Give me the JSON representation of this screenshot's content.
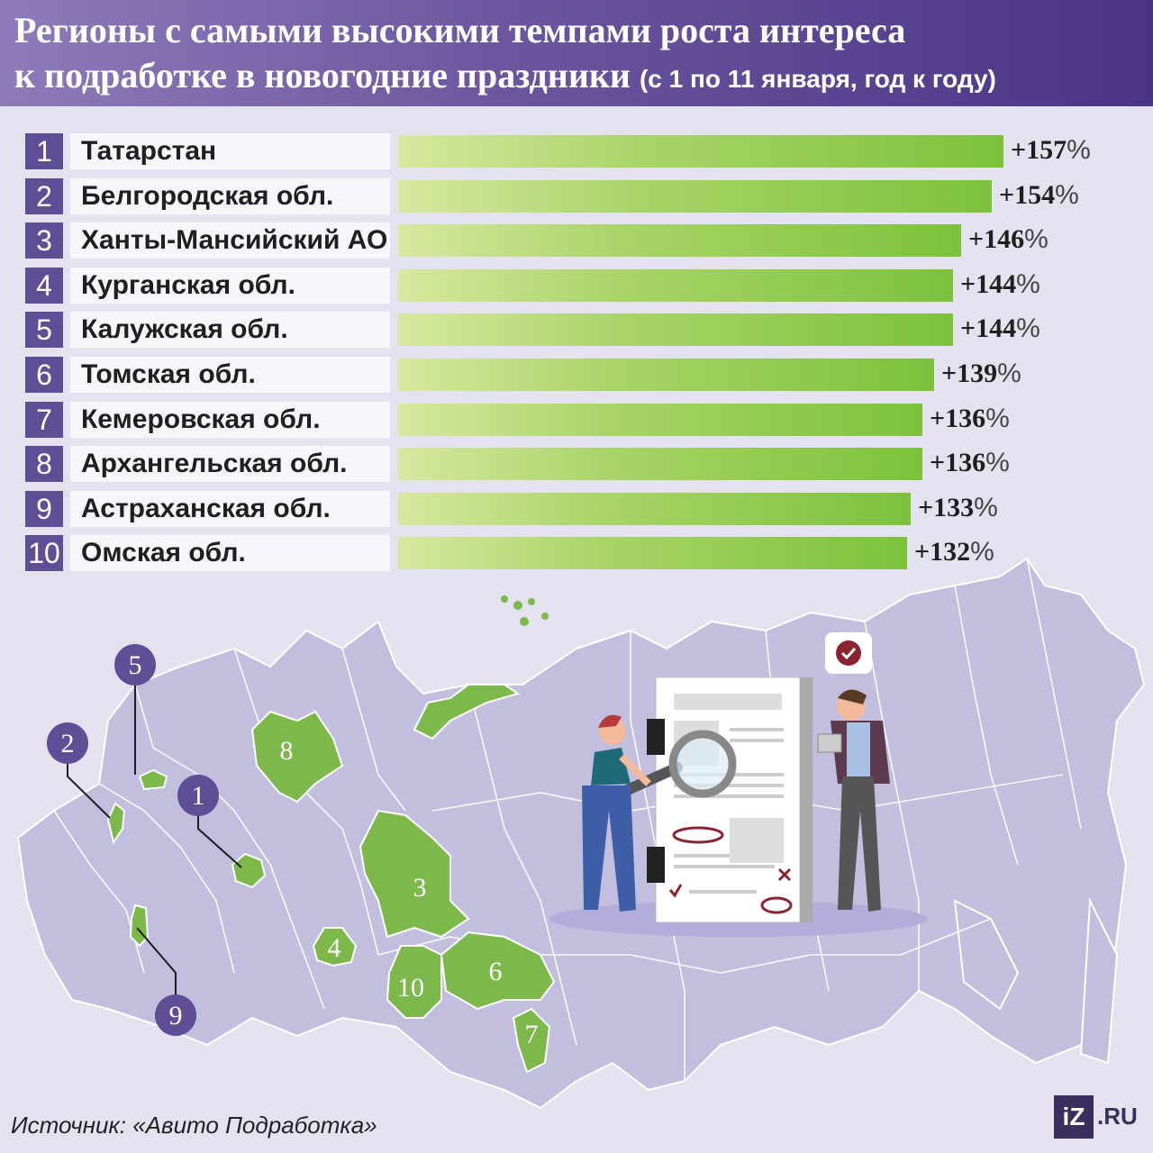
{
  "header": {
    "title_line1": "Регионы с самыми высокими темпами роста интереса",
    "title_line2": "к подработке в новогодние праздники",
    "title_sub": "(с 1 по 11 января, год к году)"
  },
  "chart_data": {
    "type": "bar",
    "categories": [
      "Татарстан",
      "Белгородская обл.",
      "Ханты-Мансийский АО",
      "Курганская обл.",
      "Калужская обл.",
      "Томская обл.",
      "Кемеровская обл.",
      "Архангельская обл.",
      "Астраханская обл.",
      "Омская обл."
    ],
    "ranks": [
      "1",
      "2",
      "3",
      "4",
      "5",
      "6",
      "7",
      "8",
      "9",
      "10"
    ],
    "values": [
      157,
      154,
      146,
      144,
      144,
      139,
      136,
      136,
      133,
      132
    ],
    "value_labels": [
      "+157",
      "+154",
      "+146",
      "+144",
      "+144",
      "+139",
      "+136",
      "+136",
      "+133",
      "+132"
    ],
    "unit": "%"
  },
  "map": {
    "region_labels": [
      "1",
      "2",
      "3",
      "4",
      "5",
      "6",
      "7",
      "8",
      "9",
      "10"
    ],
    "callouts": [
      "5",
      "2",
      "1",
      "9"
    ]
  },
  "colors": {
    "header": "#5a4590",
    "rank_box": "#5d4e96",
    "bar": "#7cc23c",
    "map_base": "#c2bedd",
    "map_highlight": "#7cb84a"
  },
  "icons": [
    "check-icon",
    "magnifier-icon"
  ],
  "footer": {
    "source": "Источник: «Авито Подработка»",
    "logo_iz": "iZ",
    "logo_ru": ".RU"
  }
}
